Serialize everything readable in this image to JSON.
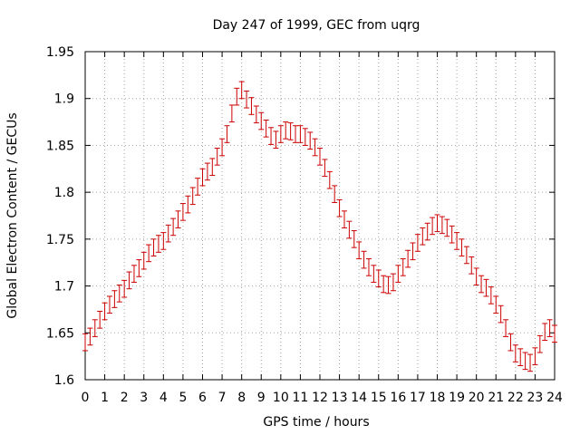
{
  "chart_data": {
    "type": "scatter",
    "title": "Day 247 of 1999, GEC from uqrg",
    "xlabel": "GPS time / hours",
    "ylabel": "Global Electron Content / GECUs",
    "xlim": [
      0,
      24
    ],
    "ylim": [
      1.6,
      1.95
    ],
    "xticks": [
      "0",
      "1",
      "2",
      "3",
      "4",
      "5",
      "6",
      "7",
      "8",
      "9",
      "10",
      "11",
      "12",
      "13",
      "14",
      "15",
      "16",
      "17",
      "18",
      "19",
      "20",
      "21",
      "22",
      "23",
      "24"
    ],
    "yticks": [
      "1.6",
      "1.65",
      "1.7",
      "1.75",
      "1.8",
      "1.85",
      "1.9",
      "1.95"
    ],
    "grid": true,
    "series": [
      {
        "name": "GEC",
        "color": "#cc0000",
        "error_bar": 0.009,
        "x": [
          0,
          0.25,
          0.5,
          0.75,
          1,
          1.25,
          1.5,
          1.75,
          2,
          2.25,
          2.5,
          2.75,
          3,
          3.25,
          3.5,
          3.75,
          4,
          4.25,
          4.5,
          4.75,
          5,
          5.25,
          5.5,
          5.75,
          6,
          6.25,
          6.5,
          6.75,
          7,
          7.25,
          7.5,
          7.75,
          8,
          8.25,
          8.5,
          8.75,
          9,
          9.25,
          9.5,
          9.75,
          10,
          10.25,
          10.5,
          10.75,
          11,
          11.25,
          11.5,
          11.75,
          12,
          12.25,
          12.5,
          12.75,
          13,
          13.25,
          13.5,
          13.75,
          14,
          14.25,
          14.5,
          14.75,
          15,
          15.25,
          15.5,
          15.75,
          16,
          16.25,
          16.5,
          16.75,
          17,
          17.25,
          17.5,
          17.75,
          18,
          18.25,
          18.5,
          18.75,
          19,
          19.25,
          19.5,
          19.75,
          20,
          20.25,
          20.5,
          20.75,
          21,
          21.25,
          21.5,
          21.75,
          22,
          22.25,
          22.5,
          22.75,
          23,
          23.25,
          23.5,
          23.75,
          24
        ],
        "y": [
          1.64,
          1.646,
          1.655,
          1.664,
          1.673,
          1.68,
          1.686,
          1.692,
          1.697,
          1.706,
          1.713,
          1.719,
          1.727,
          1.735,
          1.741,
          1.745,
          1.748,
          1.756,
          1.763,
          1.771,
          1.779,
          1.787,
          1.796,
          1.806,
          1.816,
          1.822,
          1.827,
          1.838,
          1.848,
          1.862,
          1.884,
          1.902,
          1.909,
          1.899,
          1.892,
          1.883,
          1.876,
          1.868,
          1.86,
          1.856,
          1.862,
          1.866,
          1.865,
          1.862,
          1.862,
          1.859,
          1.855,
          1.848,
          1.838,
          1.826,
          1.813,
          1.798,
          1.783,
          1.771,
          1.76,
          1.75,
          1.738,
          1.728,
          1.72,
          1.713,
          1.708,
          1.702,
          1.701,
          1.704,
          1.713,
          1.72,
          1.729,
          1.737,
          1.746,
          1.753,
          1.758,
          1.764,
          1.767,
          1.765,
          1.762,
          1.755,
          1.748,
          1.741,
          1.733,
          1.722,
          1.71,
          1.702,
          1.698,
          1.69,
          1.68,
          1.67,
          1.655,
          1.64,
          1.628,
          1.624,
          1.62,
          1.618,
          1.625,
          1.638,
          1.651,
          1.655,
          1.649
        ]
      }
    ]
  }
}
